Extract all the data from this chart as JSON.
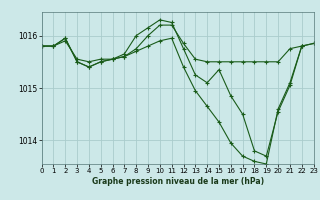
{
  "background_color": "#cce8e8",
  "grid_color": "#aacccc",
  "line_color": "#1a5c1a",
  "title": "Graphe pression niveau de la mer (hPa)",
  "ylabel_ticks": [
    1014,
    1015,
    1016
  ],
  "xlim": [
    0,
    23
  ],
  "ylim": [
    1013.55,
    1016.45
  ],
  "xticks": [
    0,
    1,
    2,
    3,
    4,
    5,
    6,
    7,
    8,
    9,
    10,
    11,
    12,
    13,
    14,
    15,
    16,
    17,
    18,
    19,
    20,
    21,
    22,
    23
  ],
  "series": [
    {
      "x": [
        0,
        1,
        2,
        3,
        4,
        5,
        6,
        7,
        8,
        9,
        10,
        11,
        12,
        13,
        14,
        15,
        16,
        17,
        18,
        19,
        20,
        21,
        22,
        23
      ],
      "y": [
        1015.8,
        1015.8,
        1015.9,
        1015.55,
        1015.5,
        1015.55,
        1015.55,
        1015.6,
        1015.75,
        1016.0,
        1016.2,
        1016.2,
        1015.85,
        1015.55,
        1015.5,
        1015.5,
        1015.5,
        1015.5,
        1015.5,
        1015.5,
        1015.5,
        1015.75,
        1015.8,
        1015.85
      ]
    },
    {
      "x": [
        0,
        1,
        2,
        3,
        4,
        5,
        6,
        7,
        8,
        9,
        10,
        11,
        12,
        13,
        14,
        15,
        16,
        17,
        18,
        19,
        20,
        21,
        22,
        23
      ],
      "y": [
        1015.8,
        1015.8,
        1015.95,
        1015.5,
        1015.4,
        1015.5,
        1015.55,
        1015.65,
        1016.0,
        1016.15,
        1016.3,
        1016.25,
        1015.75,
        1015.25,
        1015.1,
        1015.35,
        1014.85,
        1014.5,
        1013.8,
        1013.7,
        1014.55,
        1015.05,
        1015.8,
        1015.85
      ]
    },
    {
      "x": [
        0,
        1,
        2,
        3,
        4,
        5,
        6,
        7,
        8,
        9,
        10,
        11,
        12,
        13,
        14,
        15,
        16,
        17,
        18,
        19,
        20,
        21,
        22
      ],
      "y": [
        1015.8,
        1015.8,
        1015.95,
        1015.5,
        1015.4,
        1015.5,
        1015.55,
        1015.6,
        1015.7,
        1015.8,
        1015.9,
        1015.95,
        1015.4,
        1014.95,
        1014.65,
        1014.35,
        1013.95,
        1013.7,
        1013.6,
        1013.55,
        1014.6,
        1015.1,
        1015.8
      ]
    }
  ]
}
